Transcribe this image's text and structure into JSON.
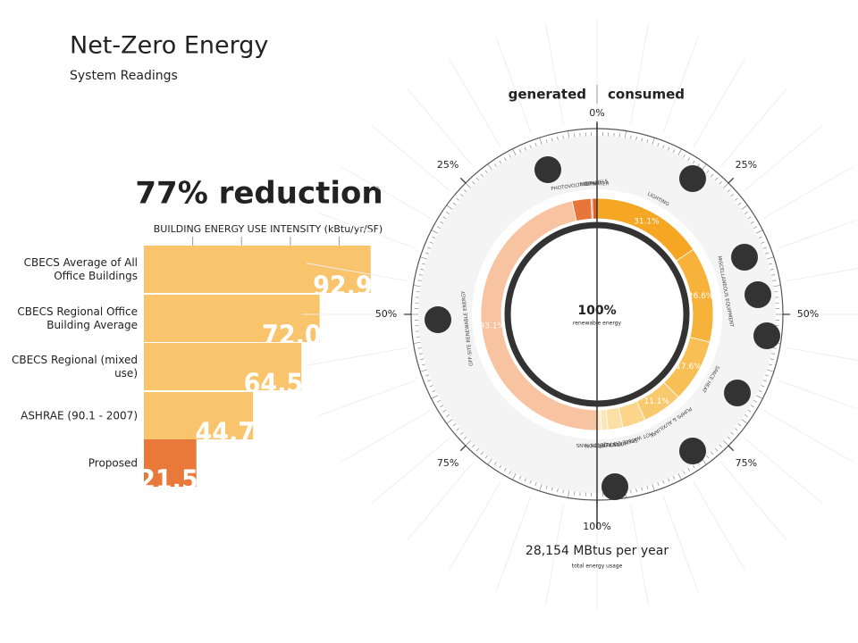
{
  "header": {
    "title": "Net-Zero Energy",
    "subtitle": "System Readings"
  },
  "chart_data": [
    {
      "type": "bar",
      "title": "77% reduction",
      "x_label": "BUILDING ENERGY USE INTENSITY (kBtu/yr/SF)",
      "categories": [
        "CBECS Average of All Office Buildings",
        "CBECS Regional Office Building Average",
        "CBECS Regional (mixed use)",
        "ASHRAE (90.1 - 2007)",
        "Proposed"
      ],
      "values": [
        92.9,
        72.0,
        64.5,
        44.7,
        21.5
      ],
      "value_labels": [
        "92.9",
        "72.0",
        "64.5",
        "44.7",
        "21.5"
      ],
      "colors": [
        "#f9c46b",
        "#f9c46b",
        "#f9c46b",
        "#f9c46b",
        "#e8793a"
      ],
      "xlim": [
        0,
        93
      ],
      "xticks": [
        20,
        40,
        60,
        80
      ],
      "grid": true
    },
    {
      "type": "donut",
      "series": [
        {
          "name": "generated",
          "categories": [
            "HOT WATER",
            "BIPV",
            "PHOTOVOLTAIC PANELS",
            "OFF-SITE RENEWABLE ENERGY"
          ],
          "values": [
            1.3,
            0.4,
            5.2,
            93.1
          ],
          "value_labels": [
            null,
            null,
            null,
            "93.1%"
          ],
          "colors": [
            "#e0602a",
            "#f09050",
            "#e8763a",
            "#f8c3a0"
          ]
        },
        {
          "name": "consumed",
          "categories": [
            "LIGHTING",
            "MISCELLANEOUS EQUIPMENT",
            "SPACE HEAT",
            "PUMPS & AUXILIARY",
            "HOT WATER",
            "SPACE COOLING",
            "HEAT REJECTION",
            "VENTILATION FANS"
          ],
          "values": [
            31.1,
            26.6,
            17.6,
            11.1,
            6.4,
            4.2,
            1.8,
            1.2
          ],
          "value_labels": [
            "31.1%",
            "26.6%",
            "17.6%",
            "11.1%",
            null,
            null,
            null,
            null
          ],
          "colors": [
            "#f5a623",
            "#f7b23b",
            "#f8bf55",
            "#f9c96e",
            "#fad58a",
            "#fbdfa4",
            "#fce6b8",
            "#fdeccb"
          ]
        }
      ],
      "ticks": [
        {
          "value": 0,
          "label": "0%"
        },
        {
          "value": 25,
          "label": "25%"
        },
        {
          "value": 50,
          "label": "50%"
        },
        {
          "value": 75,
          "label": "75%"
        },
        {
          "value": 100,
          "label": "100%"
        }
      ],
      "center_label": "100%",
      "center_sublabel": "renewable energy",
      "total_label": "28,154 MBtus per year",
      "total_sublabel": "total energy usage"
    }
  ]
}
